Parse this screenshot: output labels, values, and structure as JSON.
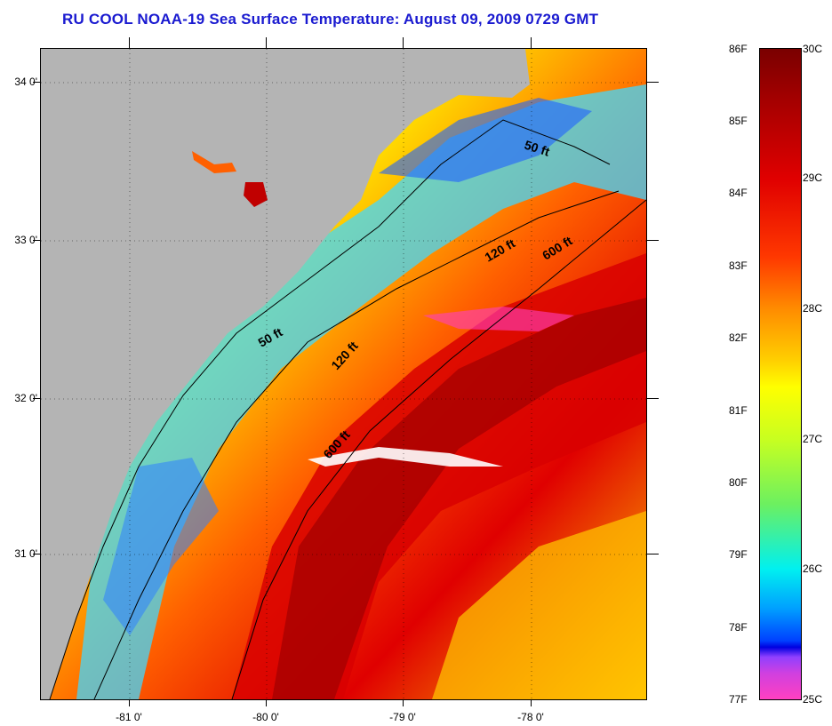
{
  "title": "RU COOL  NOAA-19  Sea Surface Temperature:  August 09, 2009 0729 GMT",
  "lat_labels": [
    "34 0'",
    "33 0'",
    "32 0'",
    "31 0'"
  ],
  "lon_labels": [
    "-81 0'",
    "-80 0'",
    "-79 0'",
    "-78 0'"
  ],
  "depth_labels": {
    "ft50_north": "50 ft",
    "ft120_north": "120 ft",
    "ft600_north": "600 ft",
    "ft50_south": "50 ft",
    "ft120_south": "120 ft",
    "ft600_south": "600 ft"
  },
  "colorbar": {
    "fahrenheit": [
      "86F",
      "85F",
      "84F",
      "83F",
      "82F",
      "81F",
      "80F",
      "79F",
      "78F",
      "77F"
    ],
    "celsius": [
      "30C",
      "29C",
      "28C",
      "27C",
      "26C",
      "25C"
    ]
  },
  "colors": {
    "land": "#b4b4b4",
    "title": "#1a1ad0"
  }
}
